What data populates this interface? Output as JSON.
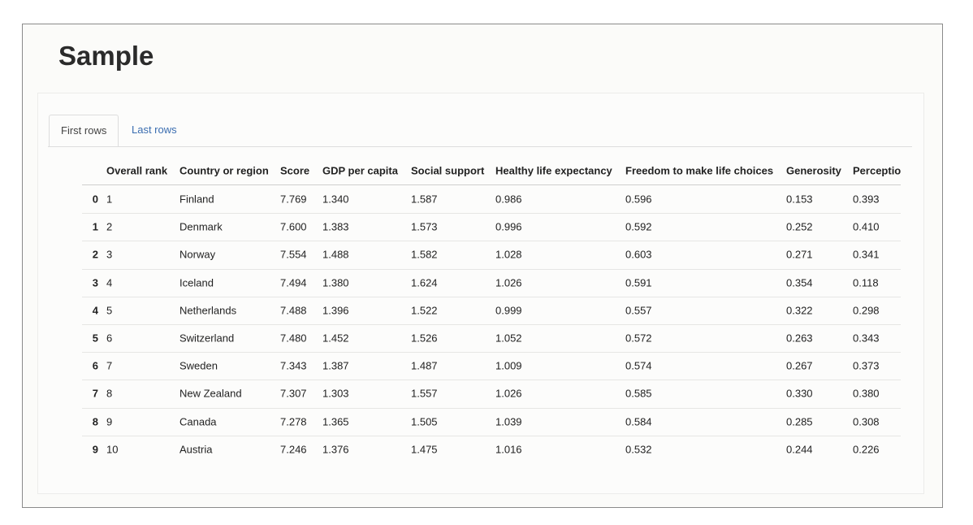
{
  "title": "Sample",
  "tabs": [
    "First rows",
    "Last rows"
  ],
  "table": {
    "columns": [
      "Overall rank",
      "Country or region",
      "Score",
      "GDP per capita",
      "Social support",
      "Healthy life expectancy",
      "Freedom to make life choices",
      "Generosity",
      "Perceptio"
    ],
    "index": [
      "0",
      "1",
      "2",
      "3",
      "4",
      "5",
      "6",
      "7",
      "8",
      "9"
    ],
    "rows": [
      [
        "1",
        "Finland",
        "7.769",
        "1.340",
        "1.587",
        "0.986",
        "0.596",
        "0.153",
        "0.393"
      ],
      [
        "2",
        "Denmark",
        "7.600",
        "1.383",
        "1.573",
        "0.996",
        "0.592",
        "0.252",
        "0.410"
      ],
      [
        "3",
        "Norway",
        "7.554",
        "1.488",
        "1.582",
        "1.028",
        "0.603",
        "0.271",
        "0.341"
      ],
      [
        "4",
        "Iceland",
        "7.494",
        "1.380",
        "1.624",
        "1.026",
        "0.591",
        "0.354",
        "0.118"
      ],
      [
        "5",
        "Netherlands",
        "7.488",
        "1.396",
        "1.522",
        "0.999",
        "0.557",
        "0.322",
        "0.298"
      ],
      [
        "6",
        "Switzerland",
        "7.480",
        "1.452",
        "1.526",
        "1.052",
        "0.572",
        "0.263",
        "0.343"
      ],
      [
        "7",
        "Sweden",
        "7.343",
        "1.387",
        "1.487",
        "1.009",
        "0.574",
        "0.267",
        "0.373"
      ],
      [
        "8",
        "New Zealand",
        "7.307",
        "1.303",
        "1.557",
        "1.026",
        "0.585",
        "0.330",
        "0.380"
      ],
      [
        "9",
        "Canada",
        "7.278",
        "1.365",
        "1.505",
        "1.039",
        "0.584",
        "0.285",
        "0.308"
      ],
      [
        "10",
        "Austria",
        "7.246",
        "1.376",
        "1.475",
        "1.016",
        "0.532",
        "0.244",
        "0.226"
      ]
    ]
  }
}
